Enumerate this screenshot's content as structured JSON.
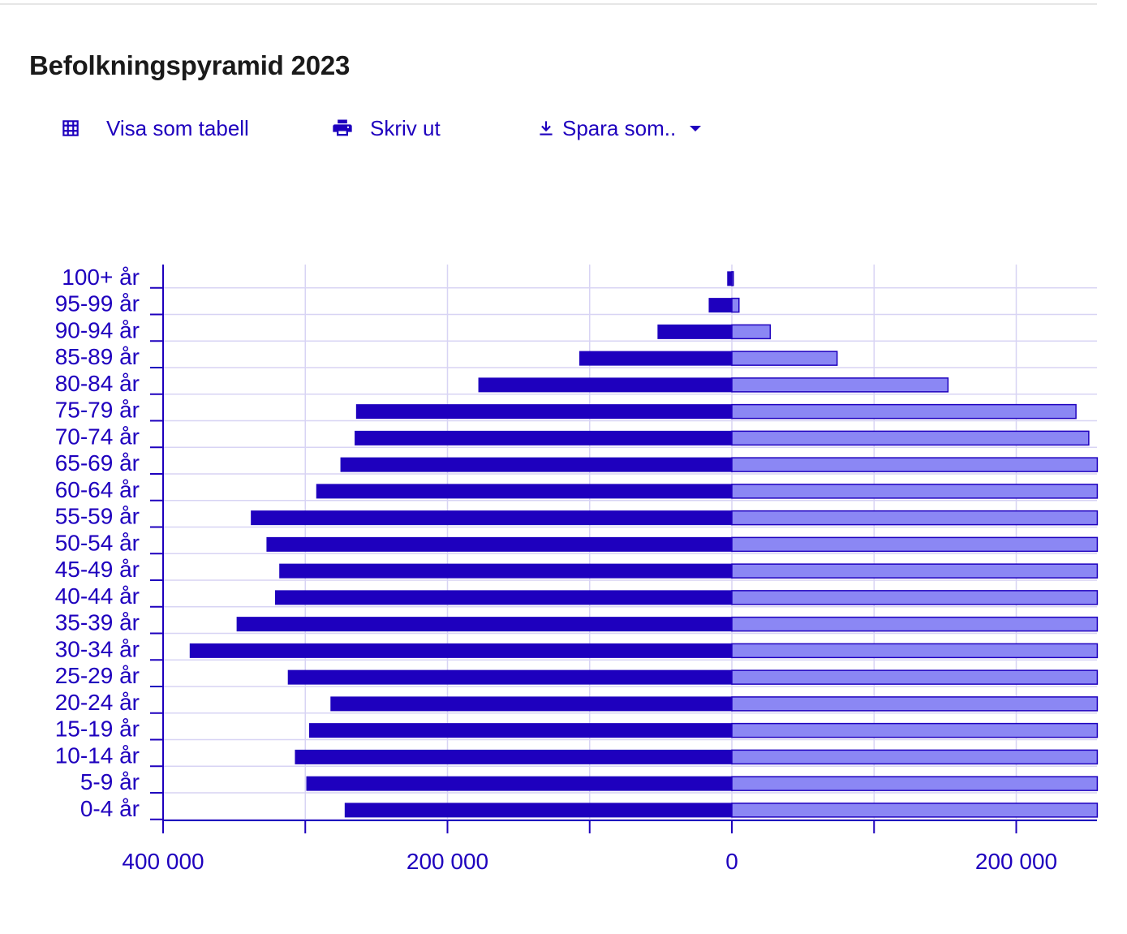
{
  "title": "Befolkningspyramid 2023",
  "toolbar": {
    "table_label": "Visa som tabell",
    "print_label": "Skriv ut",
    "save_label": "Spara som..",
    "icons": [
      "table-icon",
      "printer-icon",
      "download-icon",
      "caret-down-icon"
    ]
  },
  "colors": {
    "accent": "#1e00be",
    "male_bar": "#1e00be",
    "female_bar": "#8b87f4",
    "grid": "#d8d4f4",
    "title": "#1a1a1a"
  },
  "chart_data": {
    "type": "bar",
    "orientation": "horizontal-pyramid",
    "title": "Befolkningspyramid 2023",
    "categories": [
      "100+ år",
      "95-99 år",
      "90-94 år",
      "85-89 år",
      "80-84 år",
      "75-79 år",
      "70-74 år",
      "65-69 år",
      "60-64 år",
      "55-59 år",
      "50-54 år",
      "45-49 år",
      "40-44 år",
      "35-39 år",
      "30-34 år",
      "25-29 år",
      "20-24 år",
      "15-19 år",
      "10-14 år",
      "5-9 år",
      "0-4 år"
    ],
    "series": [
      {
        "values": [
          -3000,
          -16000,
          -52000,
          -107000,
          -178000,
          -264000,
          -265000,
          -275000,
          -292000,
          -338000,
          -327000,
          -318000,
          -321000,
          -348000,
          -381000,
          -312000,
          -282000,
          -297000,
          -307000,
          -299000,
          -272000
        ]
      },
      {
        "values": [
          1000,
          5000,
          27000,
          74000,
          152000,
          242000,
          251000,
          257000,
          257000,
          257000,
          257000,
          257000,
          257000,
          257000,
          257000,
          257000,
          257000,
          257000,
          257000,
          257000,
          257000
        ]
      }
    ],
    "x_ticks": [
      -400000,
      -200000,
      0,
      200000
    ],
    "x_tick_labels": [
      "400 000",
      "200 000",
      "0",
      "200 000"
    ],
    "xlim": [
      -400000,
      257000
    ],
    "grid": true,
    "gridline_step": 100000
  }
}
